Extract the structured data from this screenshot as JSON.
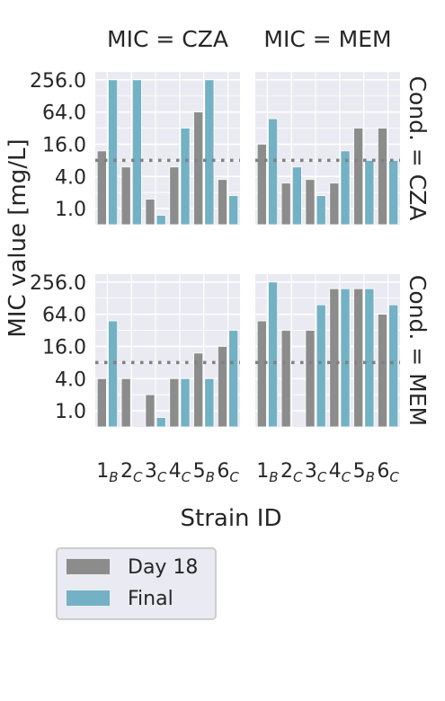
{
  "chart_data": {
    "type": "bar",
    "ylabel": "MIC value [mg/L]",
    "xlabel": "Strain ID",
    "yscale": "log2",
    "ylim": [
      0.5,
      360
    ],
    "yticks": [
      "1.0",
      "4.0",
      "16.0",
      "64.0",
      "256.0"
    ],
    "ytick_values": [
      1,
      4,
      16,
      64,
      256
    ],
    "categories": [
      {
        "num": "1",
        "sub": "B"
      },
      {
        "num": "2",
        "sub": "C"
      },
      {
        "num": "3",
        "sub": "C"
      },
      {
        "num": "4",
        "sub": "C"
      },
      {
        "num": "5",
        "sub": "B"
      },
      {
        "num": "6",
        "sub": "C"
      }
    ],
    "reference_line": 8,
    "legend": {
      "placement": "lower-left",
      "entries": [
        "Day 18",
        "Final"
      ]
    },
    "colors": {
      "day18": "#8c8c8c",
      "final": "#73b1c4",
      "background": "#eaeaf2",
      "grid": "#ffffff",
      "refline": "#808080"
    },
    "panels": [
      {
        "col_title": "MIC = CZA",
        "row_title": "Cond. = CZA",
        "series": [
          {
            "name": "Day 18",
            "values": [
              12,
              6,
              1.5,
              6,
              64,
              3.5
            ]
          },
          {
            "name": "Final",
            "values": [
              256,
              256,
              0.75,
              32,
              256,
              1.75
            ]
          }
        ]
      },
      {
        "col_title": "MIC = MEM",
        "row_title": "Cond. = CZA",
        "series": [
          {
            "name": "Day 18",
            "values": [
              16,
              3,
              3.5,
              3,
              32,
              32
            ]
          },
          {
            "name": "Final",
            "values": [
              48,
              6,
              1.75,
              12,
              8,
              8
            ]
          }
        ]
      },
      {
        "col_title": "MIC = CZA",
        "row_title": "Cond. = MEM",
        "series": [
          {
            "name": "Day 18",
            "values": [
              4,
              4,
              2,
              4,
              12,
              16
            ]
          },
          {
            "name": "Final",
            "values": [
              48,
              0.5,
              0.75,
              4,
              4,
              32
            ]
          }
        ]
      },
      {
        "col_title": "MIC = MEM",
        "row_title": "Cond. = MEM",
        "series": [
          {
            "name": "Day 18",
            "values": [
              48,
              32,
              32,
              192,
              192,
              64
            ]
          },
          {
            "name": "Final",
            "values": [
              256,
              0.5,
              96,
              192,
              192,
              96
            ]
          }
        ]
      }
    ]
  }
}
